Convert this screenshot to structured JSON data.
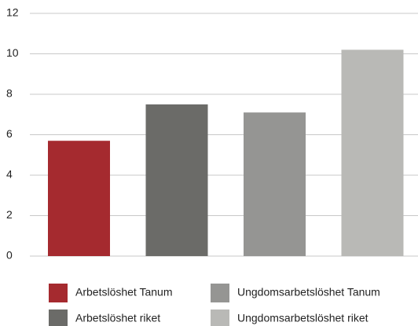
{
  "chart_data": {
    "type": "bar",
    "series": [
      {
        "name": "Arbetslöshet Tanum",
        "color": "#a52a2f",
        "values": [
          5.7
        ]
      },
      {
        "name": "Arbetslöshet riket",
        "color": "#6b6b68",
        "values": [
          7.5
        ]
      },
      {
        "name": "Ungdomsarbetslöshet Tanum",
        "color": "#959593",
        "values": [
          7.1
        ]
      },
      {
        "name": "Ungdomsarbetslöshet riket",
        "color": "#b9b9b6",
        "values": [
          10.2
        ]
      }
    ],
    "ylim": [
      0,
      12
    ],
    "yticks": [
      0,
      2,
      4,
      6,
      8,
      10,
      12
    ],
    "grid": true
  }
}
